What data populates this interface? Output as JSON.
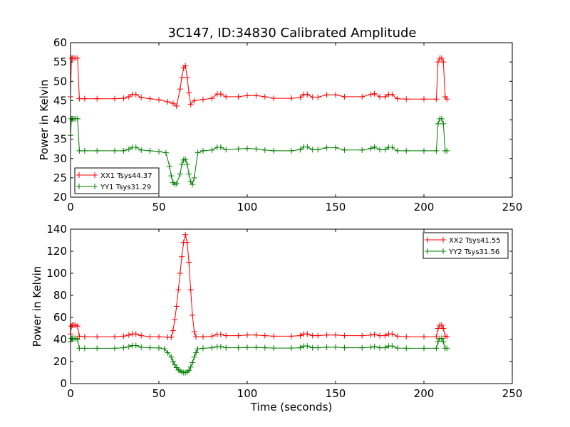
{
  "title": "3C147, ID:34830 Calibrated Amplitude",
  "chart_data": [
    {
      "type": "line",
      "marker": "+",
      "xlim": [
        0,
        250
      ],
      "ylim": [
        20,
        60
      ],
      "xticks": [
        "0",
        "50",
        "100",
        "150",
        "200",
        "250"
      ],
      "yticks": [
        "20",
        "25",
        "30",
        "35",
        "40",
        "45",
        "50",
        "55",
        "60"
      ],
      "xlabel": "",
      "ylabel": "Power in Kelvin",
      "legend_position": "lower-left",
      "series": [
        {
          "name": "XX1 Tsys44.37",
          "color": "#ff0000",
          "points": [
            [
              0,
              46
            ],
            [
              0.5,
              56
            ],
            [
              1,
              56
            ],
            [
              2,
              56
            ],
            [
              3,
              56
            ],
            [
              4,
              56
            ],
            [
              5,
              45.5
            ],
            [
              8,
              45.5
            ],
            [
              15,
              45.5
            ],
            [
              25,
              45.5
            ],
            [
              30,
              45.6
            ],
            [
              33,
              46
            ],
            [
              35,
              46.6
            ],
            [
              37,
              46.6
            ],
            [
              40,
              45.8
            ],
            [
              45,
              45.5
            ],
            [
              50,
              45.2
            ],
            [
              55,
              44.7
            ],
            [
              58,
              44.3
            ],
            [
              60,
              43.6
            ],
            [
              62,
              48
            ],
            [
              63,
              51
            ],
            [
              64,
              53.5
            ],
            [
              65,
              54
            ],
            [
              66,
              51
            ],
            [
              67,
              47
            ],
            [
              68,
              44
            ],
            [
              70,
              45
            ],
            [
              75,
              45.3
            ],
            [
              80,
              45.6
            ],
            [
              83,
              46.7
            ],
            [
              85,
              46.7
            ],
            [
              88,
              46
            ],
            [
              95,
              46
            ],
            [
              100,
              46.3
            ],
            [
              105,
              46.3
            ],
            [
              110,
              46
            ],
            [
              115,
              45.6
            ],
            [
              125,
              45.6
            ],
            [
              130,
              45.8
            ],
            [
              132,
              46.6
            ],
            [
              134,
              46.6
            ],
            [
              137,
              45.9
            ],
            [
              140,
              45.9
            ],
            [
              145,
              46.5
            ],
            [
              150,
              46.5
            ],
            [
              155,
              46
            ],
            [
              165,
              46
            ],
            [
              170,
              46.6
            ],
            [
              172,
              46.8
            ],
            [
              175,
              46
            ],
            [
              178,
              46
            ],
            [
              180,
              46.6
            ],
            [
              182,
              46.6
            ],
            [
              185,
              45.5
            ],
            [
              190,
              45.4
            ],
            [
              200,
              45.4
            ],
            [
              207,
              45.4
            ],
            [
              208,
              55
            ],
            [
              209,
              56
            ],
            [
              210,
              56
            ],
            [
              211,
              55
            ],
            [
              212,
              46
            ],
            [
              213,
              45.4
            ]
          ]
        },
        {
          "name": "YY1 Tsys31.29",
          "color": "#008000",
          "points": [
            [
              0,
              36
            ],
            [
              0.5,
              40.3
            ],
            [
              1,
              40.3
            ],
            [
              2,
              40.3
            ],
            [
              3,
              40.3
            ],
            [
              4,
              40.3
            ],
            [
              5,
              32
            ],
            [
              8,
              32
            ],
            [
              15,
              32
            ],
            [
              25,
              32
            ],
            [
              30,
              32
            ],
            [
              33,
              32.4
            ],
            [
              35,
              32.9
            ],
            [
              37,
              32.9
            ],
            [
              40,
              32.2
            ],
            [
              45,
              32
            ],
            [
              50,
              31.8
            ],
            [
              54,
              31.5
            ],
            [
              56,
              28
            ],
            [
              57,
              25.5
            ],
            [
              58,
              23.8
            ],
            [
              59,
              23.3
            ],
            [
              60,
              23.5
            ],
            [
              62,
              26
            ],
            [
              63,
              28.5
            ],
            [
              64,
              29.6
            ],
            [
              65,
              29.8
            ],
            [
              66,
              28.5
            ],
            [
              67,
              26
            ],
            [
              68,
              24
            ],
            [
              69,
              23.3
            ],
            [
              70,
              25
            ],
            [
              72,
              31.5
            ],
            [
              75,
              32
            ],
            [
              80,
              32.2
            ],
            [
              83,
              32.9
            ],
            [
              85,
              32.9
            ],
            [
              88,
              32.3
            ],
            [
              95,
              32.5
            ],
            [
              100,
              32.6
            ],
            [
              105,
              32.5
            ],
            [
              110,
              32.2
            ],
            [
              115,
              32
            ],
            [
              125,
              32
            ],
            [
              130,
              32.3
            ],
            [
              132,
              33
            ],
            [
              134,
              33
            ],
            [
              137,
              32.3
            ],
            [
              140,
              32.3
            ],
            [
              145,
              32.8
            ],
            [
              150,
              32.8
            ],
            [
              155,
              32.2
            ],
            [
              165,
              32.2
            ],
            [
              170,
              32.6
            ],
            [
              172,
              33
            ],
            [
              175,
              32.3
            ],
            [
              178,
              32.3
            ],
            [
              180,
              32.9
            ],
            [
              182,
              32.9
            ],
            [
              185,
              32
            ],
            [
              190,
              32
            ],
            [
              200,
              32
            ],
            [
              207,
              32
            ],
            [
              208,
              39
            ],
            [
              209,
              40.3
            ],
            [
              210,
              40.3
            ],
            [
              211,
              39
            ],
            [
              212,
              32
            ],
            [
              213,
              32
            ]
          ]
        }
      ]
    },
    {
      "type": "line",
      "marker": "+",
      "xlim": [
        0,
        250
      ],
      "ylim": [
        0,
        140
      ],
      "xticks": [
        "0",
        "50",
        "100",
        "150",
        "200",
        "250"
      ],
      "yticks": [
        "0",
        "20",
        "40",
        "60",
        "80",
        "100",
        "120",
        "140"
      ],
      "xlabel": "Time (seconds)",
      "ylabel": "Power in Kelvin",
      "legend_position": "upper-right",
      "series": [
        {
          "name": "XX2 Tsys41.55",
          "color": "#ff0000",
          "points": [
            [
              0,
              45
            ],
            [
              0.5,
              52
            ],
            [
              1,
              53
            ],
            [
              2,
              53
            ],
            [
              3,
              53
            ],
            [
              4,
              52
            ],
            [
              5,
              43
            ],
            [
              8,
              42.5
            ],
            [
              15,
              42.5
            ],
            [
              25,
              42.5
            ],
            [
              30,
              43
            ],
            [
              33,
              44
            ],
            [
              35,
              45
            ],
            [
              37,
              45
            ],
            [
              40,
              43.5
            ],
            [
              45,
              42.5
            ],
            [
              50,
              42.5
            ],
            [
              55,
              42
            ],
            [
              57,
              42
            ],
            [
              58,
              48
            ],
            [
              59,
              58
            ],
            [
              60,
              70
            ],
            [
              61,
              85
            ],
            [
              62,
              100
            ],
            [
              63,
              115
            ],
            [
              64,
              128
            ],
            [
              65,
              135
            ],
            [
              66,
              128
            ],
            [
              67,
              110
            ],
            [
              68,
              85
            ],
            [
              69,
              62
            ],
            [
              70,
              47
            ],
            [
              71,
              42.5
            ],
            [
              75,
              42.5
            ],
            [
              80,
              43
            ],
            [
              83,
              44.5
            ],
            [
              85,
              44.5
            ],
            [
              88,
              43.5
            ],
            [
              95,
              43.5
            ],
            [
              100,
              44
            ],
            [
              105,
              44
            ],
            [
              110,
              43.5
            ],
            [
              115,
              43
            ],
            [
              125,
              43
            ],
            [
              130,
              43.5
            ],
            [
              132,
              45
            ],
            [
              134,
              45
            ],
            [
              137,
              43.5
            ],
            [
              140,
              43.5
            ],
            [
              145,
              44
            ],
            [
              150,
              44
            ],
            [
              155,
              43.5
            ],
            [
              165,
              43.5
            ],
            [
              170,
              44
            ],
            [
              172,
              44.5
            ],
            [
              175,
              43.5
            ],
            [
              178,
              43.5
            ],
            [
              180,
              45
            ],
            [
              182,
              45
            ],
            [
              185,
              43
            ],
            [
              190,
              42.5
            ],
            [
              200,
              42.5
            ],
            [
              207,
              42.5
            ],
            [
              208,
              50
            ],
            [
              209,
              53
            ],
            [
              210,
              53
            ],
            [
              211,
              50
            ],
            [
              212,
              43
            ],
            [
              213,
              42.5
            ]
          ]
        },
        {
          "name": "YY2 Tsys31.56",
          "color": "#008000",
          "points": [
            [
              0,
              38
            ],
            [
              0.5,
              41
            ],
            [
              1,
              41
            ],
            [
              2,
              41
            ],
            [
              3,
              41
            ],
            [
              4,
              40
            ],
            [
              5,
              32
            ],
            [
              8,
              32
            ],
            [
              15,
              32
            ],
            [
              25,
              32
            ],
            [
              30,
              32.5
            ],
            [
              33,
              33.5
            ],
            [
              35,
              34.5
            ],
            [
              37,
              34.5
            ],
            [
              40,
              33
            ],
            [
              45,
              32.5
            ],
            [
              50,
              32.3
            ],
            [
              53,
              31.5
            ],
            [
              55,
              28
            ],
            [
              57,
              24
            ],
            [
              58,
              20
            ],
            [
              59,
              17
            ],
            [
              60,
              14.5
            ],
            [
              61,
              12.5
            ],
            [
              62,
              11.5
            ],
            [
              63,
              10.5
            ],
            [
              64,
              10
            ],
            [
              65,
              10
            ],
            [
              66,
              10.5
            ],
            [
              67,
              12
            ],
            [
              68,
              15
            ],
            [
              69,
              19
            ],
            [
              70,
              24
            ],
            [
              71,
              28
            ],
            [
              72,
              31.5
            ],
            [
              75,
              32
            ],
            [
              80,
              32.5
            ],
            [
              83,
              33.5
            ],
            [
              85,
              33.5
            ],
            [
              88,
              32.5
            ],
            [
              95,
              32.5
            ],
            [
              100,
              32.8
            ],
            [
              105,
              32.8
            ],
            [
              110,
              32.5
            ],
            [
              115,
              32.2
            ],
            [
              125,
              32.2
            ],
            [
              130,
              32.5
            ],
            [
              132,
              34
            ],
            [
              134,
              34
            ],
            [
              137,
              32.5
            ],
            [
              140,
              32.5
            ],
            [
              145,
              33
            ],
            [
              150,
              33
            ],
            [
              155,
              32.5
            ],
            [
              165,
              32.5
            ],
            [
              170,
              33
            ],
            [
              172,
              33.5
            ],
            [
              175,
              32.5
            ],
            [
              178,
              32.5
            ],
            [
              180,
              34
            ],
            [
              182,
              34
            ],
            [
              185,
              32.2
            ],
            [
              190,
              32
            ],
            [
              200,
              32
            ],
            [
              207,
              32
            ],
            [
              208,
              38
            ],
            [
              209,
              41
            ],
            [
              210,
              41
            ],
            [
              211,
              38
            ],
            [
              212,
              32
            ],
            [
              213,
              32
            ]
          ]
        }
      ]
    }
  ]
}
